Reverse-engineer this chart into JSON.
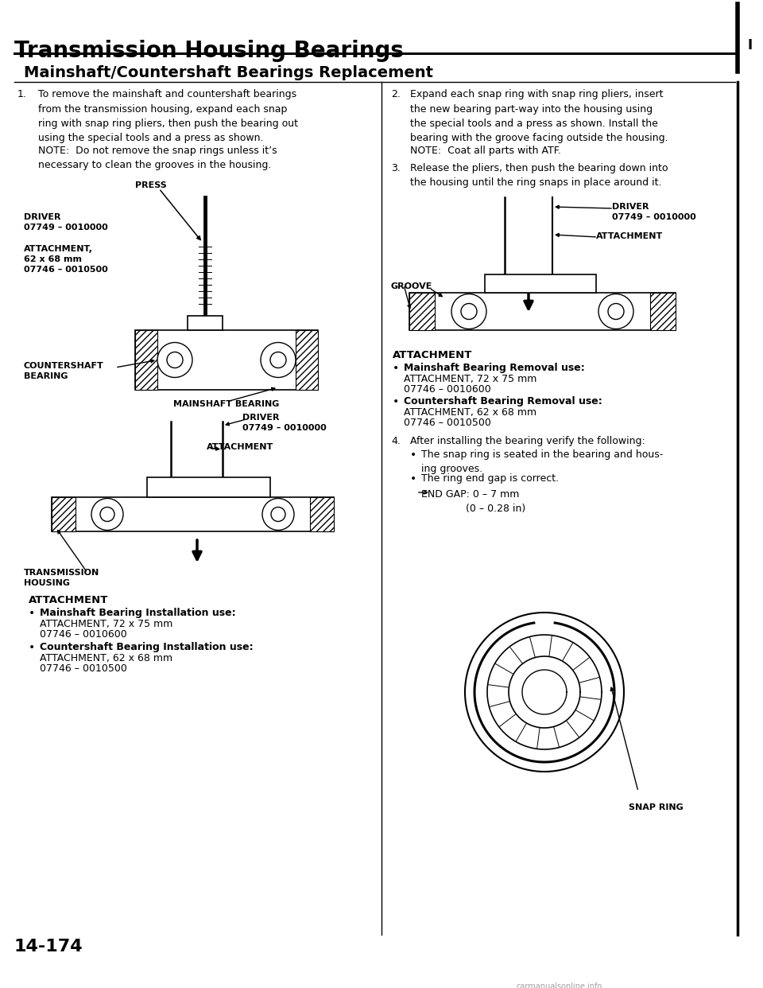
{
  "title": "Transmission Housing Bearings",
  "subtitle": "Mainshaft/Countershaft Bearings Replacement",
  "page_number": "14-174",
  "watermark": "carmanualsonline.info",
  "bg": "#ffffff",
  "black": "#000000",
  "gray": "#888888",
  "title_fs": 20,
  "subtitle_fs": 14,
  "body_fs": 9,
  "label_fs": 8,
  "page_fs": 16,
  "s1": "To remove the mainshaft and countershaft bearings\nfrom the transmission housing, expand each snap\nring with snap ring pliers, then push the bearing out\nusing the special tools and a press as shown.",
  "s1note": "NOTE:  Do not remove the snap rings unless it’s\nnecessary to clean the grooves in the housing.",
  "s2": "Expand each snap ring with snap ring pliers, insert\nthe new bearing part-way into the housing using\nthe special tools and a press as shown. Install the\nbearing with the groove facing outside the housing.",
  "s2note": "NOTE:  Coat all parts with ATF.",
  "s3": "Release the pliers, then push the bearing down into\nthe housing until the ring snaps in place around it.",
  "s4": "After installing the bearing verify the following:",
  "s4b1": "The snap ring is seated in the bearing and hous-\ning grooves.",
  "s4b2": "The ring end gap is correct.",
  "end_gap": "END GAP: 0 – 7 mm\n              (0 – 0.28 in)"
}
